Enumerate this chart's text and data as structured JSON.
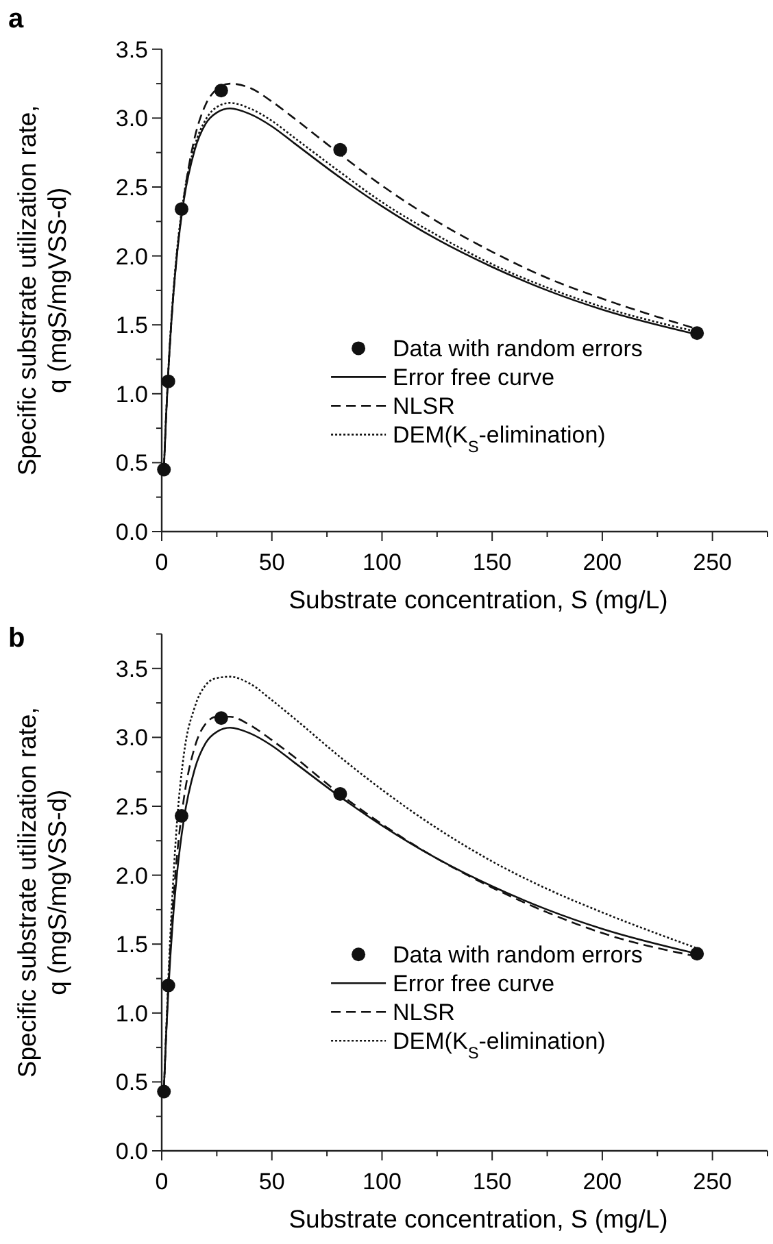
{
  "chart_data": [
    {
      "type": "line",
      "title": "a",
      "xlabel": "Substrate concentration, S (mg/L)",
      "ylabel": "Specific substrate utilization rate,\nq (mgS/mgVSS-d)",
      "xlim": [
        0,
        275
      ],
      "ylim": [
        0,
        3.5
      ],
      "xticks": [
        0,
        {
          "value": 25,
          "label": null
        },
        50,
        {
          "value": 75,
          "label": null
        },
        100,
        {
          "value": 125,
          "label": null
        },
        150,
        {
          "value": 175,
          "label": null
        },
        200,
        {
          "value": 225,
          "label": null
        },
        250,
        {
          "value": 275,
          "label": null
        }
      ],
      "yticks": [
        {
          "value": 0,
          "label": "0.0"
        },
        {
          "value": 0.25,
          "label": null
        },
        0.5,
        {
          "value": 0.75,
          "label": null
        },
        {
          "value": 1,
          "label": "1.0"
        },
        {
          "value": 1.25,
          "label": null
        },
        1.5,
        {
          "value": 1.75,
          "label": null
        },
        {
          "value": 2,
          "label": "2.0"
        },
        {
          "value": 2.25,
          "label": null
        },
        2.5,
        {
          "value": 2.75,
          "label": null
        },
        {
          "value": 3,
          "label": "3.0"
        },
        {
          "value": 3.25,
          "label": null
        },
        3.5
      ],
      "grid": false,
      "legend": "bottom",
      "series": [
        {
          "name": "Data with random errors",
          "type": "scatter",
          "marker": "circle",
          "color": "#111111",
          "x": [
            1,
            3,
            9,
            27,
            81,
            243
          ],
          "values": [
            0.45,
            1.09,
            2.34,
            3.2,
            2.77,
            1.44
          ]
        },
        {
          "name": "Error free curve",
          "line_style": "solid",
          "color": "#111111",
          "x": [
            1,
            2,
            3,
            5,
            7,
            10,
            15,
            20,
            25,
            31,
            40,
            50,
            60,
            80,
            100,
            125,
            150,
            175,
            200,
            243
          ],
          "values": [
            0.46,
            0.84,
            1.16,
            1.66,
            2.02,
            2.4,
            2.77,
            2.96,
            3.04,
            3.07,
            3.03,
            2.94,
            2.82,
            2.58,
            2.36,
            2.12,
            1.92,
            1.75,
            1.61,
            1.43
          ]
        },
        {
          "name": "NLSR",
          "line_style": "dashed",
          "color": "#111111",
          "x": [
            1,
            2,
            3,
            5,
            7,
            10,
            15,
            20,
            25,
            31,
            40,
            50,
            60,
            80,
            100,
            125,
            150,
            175,
            200,
            243
          ],
          "values": [
            0.46,
            0.84,
            1.16,
            1.66,
            2.03,
            2.42,
            2.86,
            3.1,
            3.21,
            3.25,
            3.22,
            3.12,
            3.0,
            2.75,
            2.51,
            2.25,
            2.03,
            1.84,
            1.69,
            1.47
          ]
        },
        {
          "name": "DEM(K$_{S}$-elimination)",
          "line_style": "dotted",
          "color": "#111111",
          "x": [
            1,
            2,
            3,
            5,
            7,
            10,
            15,
            20,
            25,
            31,
            40,
            50,
            60,
            80,
            100,
            125,
            150,
            175,
            200,
            243
          ],
          "values": [
            0.46,
            0.85,
            1.17,
            1.68,
            2.05,
            2.43,
            2.8,
            2.99,
            3.08,
            3.11,
            3.07,
            2.98,
            2.86,
            2.62,
            2.39,
            2.15,
            1.94,
            1.77,
            1.63,
            1.45
          ]
        }
      ]
    },
    {
      "type": "line",
      "title": "b",
      "xlabel": "Substrate concentration, S (mg/L)",
      "ylabel": "Specific substrate utilization rate,\nq (mgS/mgVSS-d)",
      "xlim": [
        0,
        275
      ],
      "ylim": [
        0,
        3.75
      ],
      "xticks": [
        0,
        {
          "value": 25,
          "label": null
        },
        50,
        {
          "value": 75,
          "label": null
        },
        100,
        {
          "value": 125,
          "label": null
        },
        150,
        {
          "value": 175,
          "label": null
        },
        200,
        {
          "value": 225,
          "label": null
        },
        250,
        {
          "value": 275,
          "label": null
        }
      ],
      "yticks": [
        {
          "value": 0,
          "label": "0.0"
        },
        {
          "value": 0.25,
          "label": null
        },
        0.5,
        {
          "value": 0.75,
          "label": null
        },
        {
          "value": 1,
          "label": "1.0"
        },
        {
          "value": 1.25,
          "label": null
        },
        1.5,
        {
          "value": 1.75,
          "label": null
        },
        {
          "value": 2,
          "label": "2.0"
        },
        {
          "value": 2.25,
          "label": null
        },
        2.5,
        {
          "value": 2.75,
          "label": null
        },
        {
          "value": 3,
          "label": "3.0"
        },
        {
          "value": 3.25,
          "label": null
        },
        3.5,
        {
          "value": 3.75,
          "label": null
        }
      ],
      "grid": false,
      "legend": "bottom",
      "series": [
        {
          "name": "Data with random errors",
          "type": "scatter",
          "marker": "circle",
          "color": "#111111",
          "x": [
            1,
            3,
            9,
            27,
            81,
            243
          ],
          "values": [
            0.43,
            1.2,
            2.43,
            3.14,
            2.59,
            1.43
          ]
        },
        {
          "name": "Error free curve",
          "line_style": "solid",
          "color": "#111111",
          "x": [
            1,
            2,
            3,
            5,
            7,
            10,
            15,
            20,
            25,
            31,
            40,
            50,
            60,
            80,
            100,
            125,
            150,
            175,
            200,
            243
          ],
          "values": [
            0.46,
            0.84,
            1.16,
            1.66,
            2.02,
            2.4,
            2.77,
            2.96,
            3.04,
            3.07,
            3.03,
            2.94,
            2.82,
            2.58,
            2.36,
            2.12,
            1.92,
            1.75,
            1.61,
            1.43
          ]
        },
        {
          "name": "NLSR",
          "line_style": "dashed",
          "color": "#111111",
          "x": [
            1,
            2,
            3,
            5,
            7,
            10,
            15,
            20,
            25,
            31,
            40,
            50,
            60,
            80,
            100,
            125,
            150,
            175,
            200,
            243
          ],
          "values": [
            0.44,
            0.84,
            1.2,
            1.75,
            2.15,
            2.55,
            2.93,
            3.1,
            3.15,
            3.15,
            3.09,
            2.98,
            2.86,
            2.6,
            2.37,
            2.12,
            1.91,
            1.73,
            1.58,
            1.41
          ]
        },
        {
          "name": "DEM(K$_{S}$-elimination)",
          "line_style": "dotted",
          "color": "#111111",
          "x": [
            1,
            2,
            3,
            5,
            7,
            10,
            15,
            20,
            25,
            31,
            40,
            50,
            60,
            80,
            100,
            125,
            150,
            175,
            200,
            243
          ],
          "values": [
            0.44,
            0.86,
            1.25,
            1.9,
            2.4,
            2.87,
            3.22,
            3.38,
            3.43,
            3.44,
            3.39,
            3.27,
            3.14,
            2.87,
            2.62,
            2.34,
            2.1,
            1.9,
            1.73,
            1.47
          ]
        }
      ]
    }
  ]
}
